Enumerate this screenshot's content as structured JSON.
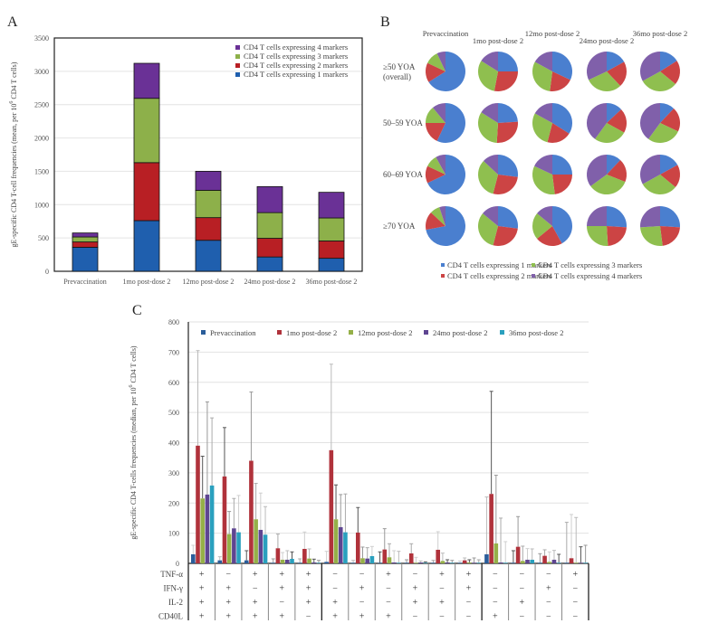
{
  "panels": {
    "A": "A",
    "B": "B",
    "C": "C"
  },
  "chart_data": [
    {
      "id": "A",
      "type": "bar",
      "stacked": true,
      "title": "",
      "xlabel": "",
      "ylabel": "gE-specific CD4 T-cell frequencies (mean, per 10^6 CD4 T cells)",
      "ylim": [
        0,
        3500
      ],
      "yticks": [
        0,
        500,
        1000,
        1500,
        2000,
        2500,
        3000,
        3500
      ],
      "grid": true,
      "legend_position": "top-right",
      "categories": [
        "Prevaccination",
        "1mo post-dose 2",
        "12mo post-dose 2",
        "24mo post-dose 2",
        "36mo post-dose 2"
      ],
      "series": [
        {
          "name": "CD4 T cells expressing 1 markers",
          "color": "#1f5fae",
          "values": [
            360,
            760,
            465,
            215,
            195
          ]
        },
        {
          "name": "CD4 T cells expressing 2 markers",
          "color": "#b81f24",
          "values": [
            80,
            870,
            340,
            280,
            260
          ]
        },
        {
          "name": "CD4 T cells expressing 3 markers",
          "color": "#8db04a",
          "values": [
            75,
            965,
            410,
            385,
            345
          ]
        },
        {
          "name": "CD4 T cells expressing 4 markers",
          "color": "#6a3196",
          "values": [
            60,
            525,
            285,
            390,
            385
          ]
        }
      ],
      "legend_order": [
        3,
        2,
        1,
        0
      ]
    },
    {
      "id": "B",
      "type": "pie",
      "columns": [
        "Prevaccination",
        "1mo post-dose 2",
        "12mo post-dose 2",
        "24mo post-dose 2",
        "36mo post-dose 2"
      ],
      "rows": [
        "≥50 YOA",
        "50–59 YOA",
        "60–69 YOA",
        "≥70 YOA"
      ],
      "row_sublabels": [
        "(overall)",
        "",
        "",
        ""
      ],
      "slice_names": [
        "CD4 T cells expressing 1 markers",
        "CD4 T cells expressing 2 markers",
        "CD4 T cells expressing 3 markers",
        "CD4 T cells expressing 4 markers"
      ],
      "slice_colors": [
        "#4a7fcf",
        "#cc4444",
        "#8fbf4f",
        "#8060aa"
      ],
      "legend_position": "bottom",
      "values": [
        [
          [
            66,
            16,
            11,
            7
          ],
          [
            25,
            28,
            31,
            16
          ],
          [
            32,
            20,
            31,
            17
          ],
          [
            17,
            21,
            30,
            32
          ],
          [
            16,
            20,
            31,
            33
          ]
        ],
        [
          [
            57,
            18,
            14,
            11
          ],
          [
            24,
            27,
            33,
            16
          ],
          [
            34,
            20,
            29,
            17
          ],
          [
            13,
            20,
            27,
            40
          ],
          [
            12,
            20,
            28,
            40
          ]
        ],
        [
          [
            68,
            14,
            10,
            8
          ],
          [
            27,
            27,
            33,
            13
          ],
          [
            25,
            23,
            34,
            18
          ],
          [
            12,
            19,
            34,
            35
          ],
          [
            17,
            19,
            31,
            33
          ]
        ],
        [
          [
            72,
            15,
            8,
            5
          ],
          [
            27,
            27,
            32,
            14
          ],
          [
            42,
            22,
            22,
            14
          ],
          [
            26,
            23,
            26,
            25
          ],
          [
            26,
            22,
            26,
            26
          ]
        ]
      ]
    },
    {
      "id": "C",
      "type": "bar",
      "grouped": true,
      "title": "",
      "xlabel": "",
      "ylabel": "gE-specific CD4 T-cells frequencies (median, per 10^6 CD4 T cells)",
      "ylim": [
        0,
        800
      ],
      "yticks": [
        0,
        100,
        200,
        300,
        400,
        500,
        600,
        700,
        800
      ],
      "grid": true,
      "legend_position": "top",
      "series_names": [
        "Prevaccination",
        "1mo post-dose 2",
        "12mo post-dose 2",
        "24mo post-dose 2",
        "36mo post-dose 2"
      ],
      "series_colors": [
        "#2a5d9a",
        "#b0323b",
        "#95b048",
        "#5e4591",
        "#2aa0be"
      ],
      "marker_rows": [
        "TNF-α",
        "IFN-γ",
        "IL-2",
        "CD40L"
      ],
      "groups": [
        {
          "markers": [
            "+",
            "+",
            "+",
            "+"
          ],
          "values": [
            30,
            390,
            215,
            228,
            258
          ],
          "upper": [
            60,
            705,
            355,
            535,
            482
          ]
        },
        {
          "markers": [
            "−",
            "+",
            "+",
            "+"
          ],
          "values": [
            10,
            288,
            97,
            116,
            103
          ],
          "upper": [
            22,
            450,
            172,
            215,
            225
          ]
        },
        {
          "markers": [
            "+",
            "−",
            "+",
            "+"
          ],
          "values": [
            10,
            340,
            146,
            111,
            95
          ],
          "upper": [
            42,
            568,
            265,
            233,
            188
          ]
        },
        {
          "markers": [
            "+",
            "+",
            "−",
            "+"
          ],
          "values": [
            2,
            50,
            12,
            12,
            15
          ],
          "upper": [
            15,
            97,
            36,
            42,
            38
          ]
        },
        {
          "markers": [
            "+",
            "+",
            "+",
            "−"
          ],
          "values": [
            2,
            48,
            16,
            3,
            2
          ],
          "upper": [
            15,
            104,
            48,
            14,
            10
          ]
        },
        {
          "markers": [
            "−",
            "−",
            "+",
            "+"
          ],
          "values": [
            5,
            375,
            146,
            120,
            103
          ],
          "upper": [
            40,
            660,
            260,
            228,
            230
          ]
        },
        {
          "markers": [
            "−",
            "+",
            "−",
            "+"
          ],
          "values": [
            2,
            102,
            17,
            16,
            24
          ],
          "upper": [
            10,
            185,
            54,
            52,
            56
          ]
        },
        {
          "markers": [
            "+",
            "−",
            "−",
            "+"
          ],
          "values": [
            2,
            46,
            20,
            3,
            2
          ],
          "upper": [
            38,
            115,
            65,
            42,
            40
          ]
        },
        {
          "markers": [
            "−",
            "+",
            "+",
            "−"
          ],
          "values": [
            2,
            33,
            2,
            3,
            2
          ],
          "upper": [
            12,
            65,
            20,
            8,
            5
          ]
        },
        {
          "markers": [
            "+",
            "−",
            "+",
            "−"
          ],
          "values": [
            2,
            45,
            8,
            3,
            2
          ],
          "upper": [
            10,
            105,
            34,
            12,
            10
          ]
        },
        {
          "markers": [
            "+",
            "+",
            "−",
            "−"
          ],
          "values": [
            2,
            10,
            3,
            2,
            2
          ],
          "upper": [
            8,
            18,
            12,
            18,
            12
          ]
        },
        {
          "markers": [
            "−",
            "−",
            "−",
            "+"
          ],
          "values": [
            30,
            230,
            66,
            3,
            2
          ],
          "upper": [
            220,
            570,
            292,
            150,
            72
          ]
        },
        {
          "markers": [
            "−",
            "−",
            "+",
            "−"
          ],
          "values": [
            2,
            55,
            8,
            12,
            12
          ],
          "upper": [
            42,
            155,
            57,
            49,
            48
          ]
        },
        {
          "markers": [
            "−",
            "+",
            "−",
            "−"
          ],
          "values": [
            2,
            25,
            5,
            12,
            2
          ],
          "upper": [
            32,
            45,
            38,
            43,
            30
          ]
        },
        {
          "markers": [
            "+",
            "−",
            "−",
            "−"
          ],
          "values": [
            2,
            17,
            2,
            2,
            2
          ],
          "upper": [
            136,
            162,
            152,
            55,
            60
          ]
        }
      ]
    }
  ]
}
